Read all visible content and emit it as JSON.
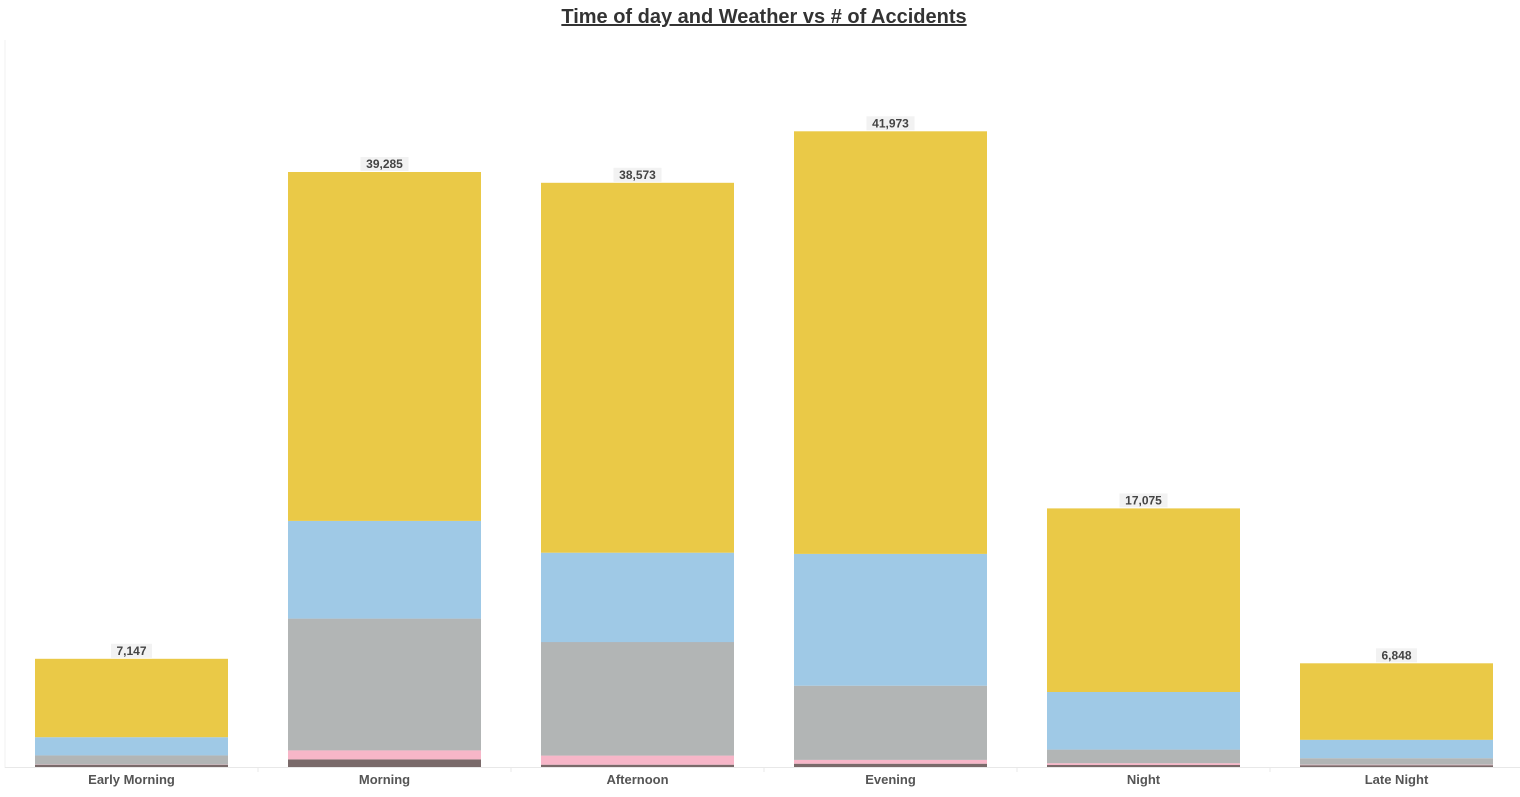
{
  "chart_data": {
    "type": "bar",
    "stacked": true,
    "title": "Time of day and Weather vs # of Accidents",
    "xlabel": "",
    "ylabel": "",
    "ylim": [
      0,
      48000
    ],
    "grid": false,
    "legend": "none",
    "categories": [
      "Early Morning",
      "Morning",
      "Afternoon",
      "Evening",
      "Night",
      "Late Night"
    ],
    "totals": [
      7147,
      39285,
      38573,
      41973,
      17075,
      6848
    ],
    "total_labels": [
      "7,147",
      "39,285",
      "38,573",
      "41,973",
      "17,075",
      "6,848"
    ],
    "series": [
      {
        "color": "#7a6a6a",
        "values": [
          150,
          500,
          150,
          220,
          130,
          120
        ]
      },
      {
        "color": "#f7b6c8",
        "values": [
          20,
          600,
          600,
          250,
          120,
          30
        ]
      },
      {
        "color": "#b2b5b5",
        "values": [
          600,
          8700,
          7500,
          4900,
          900,
          430
        ]
      },
      {
        "color": "#9fc9e6",
        "values": [
          1200,
          6450,
          5900,
          8700,
          3800,
          1220
        ]
      },
      {
        "color": "#eac947",
        "values": [
          5177,
          23035,
          24423,
          27903,
          12125,
          5048
        ]
      }
    ]
  }
}
